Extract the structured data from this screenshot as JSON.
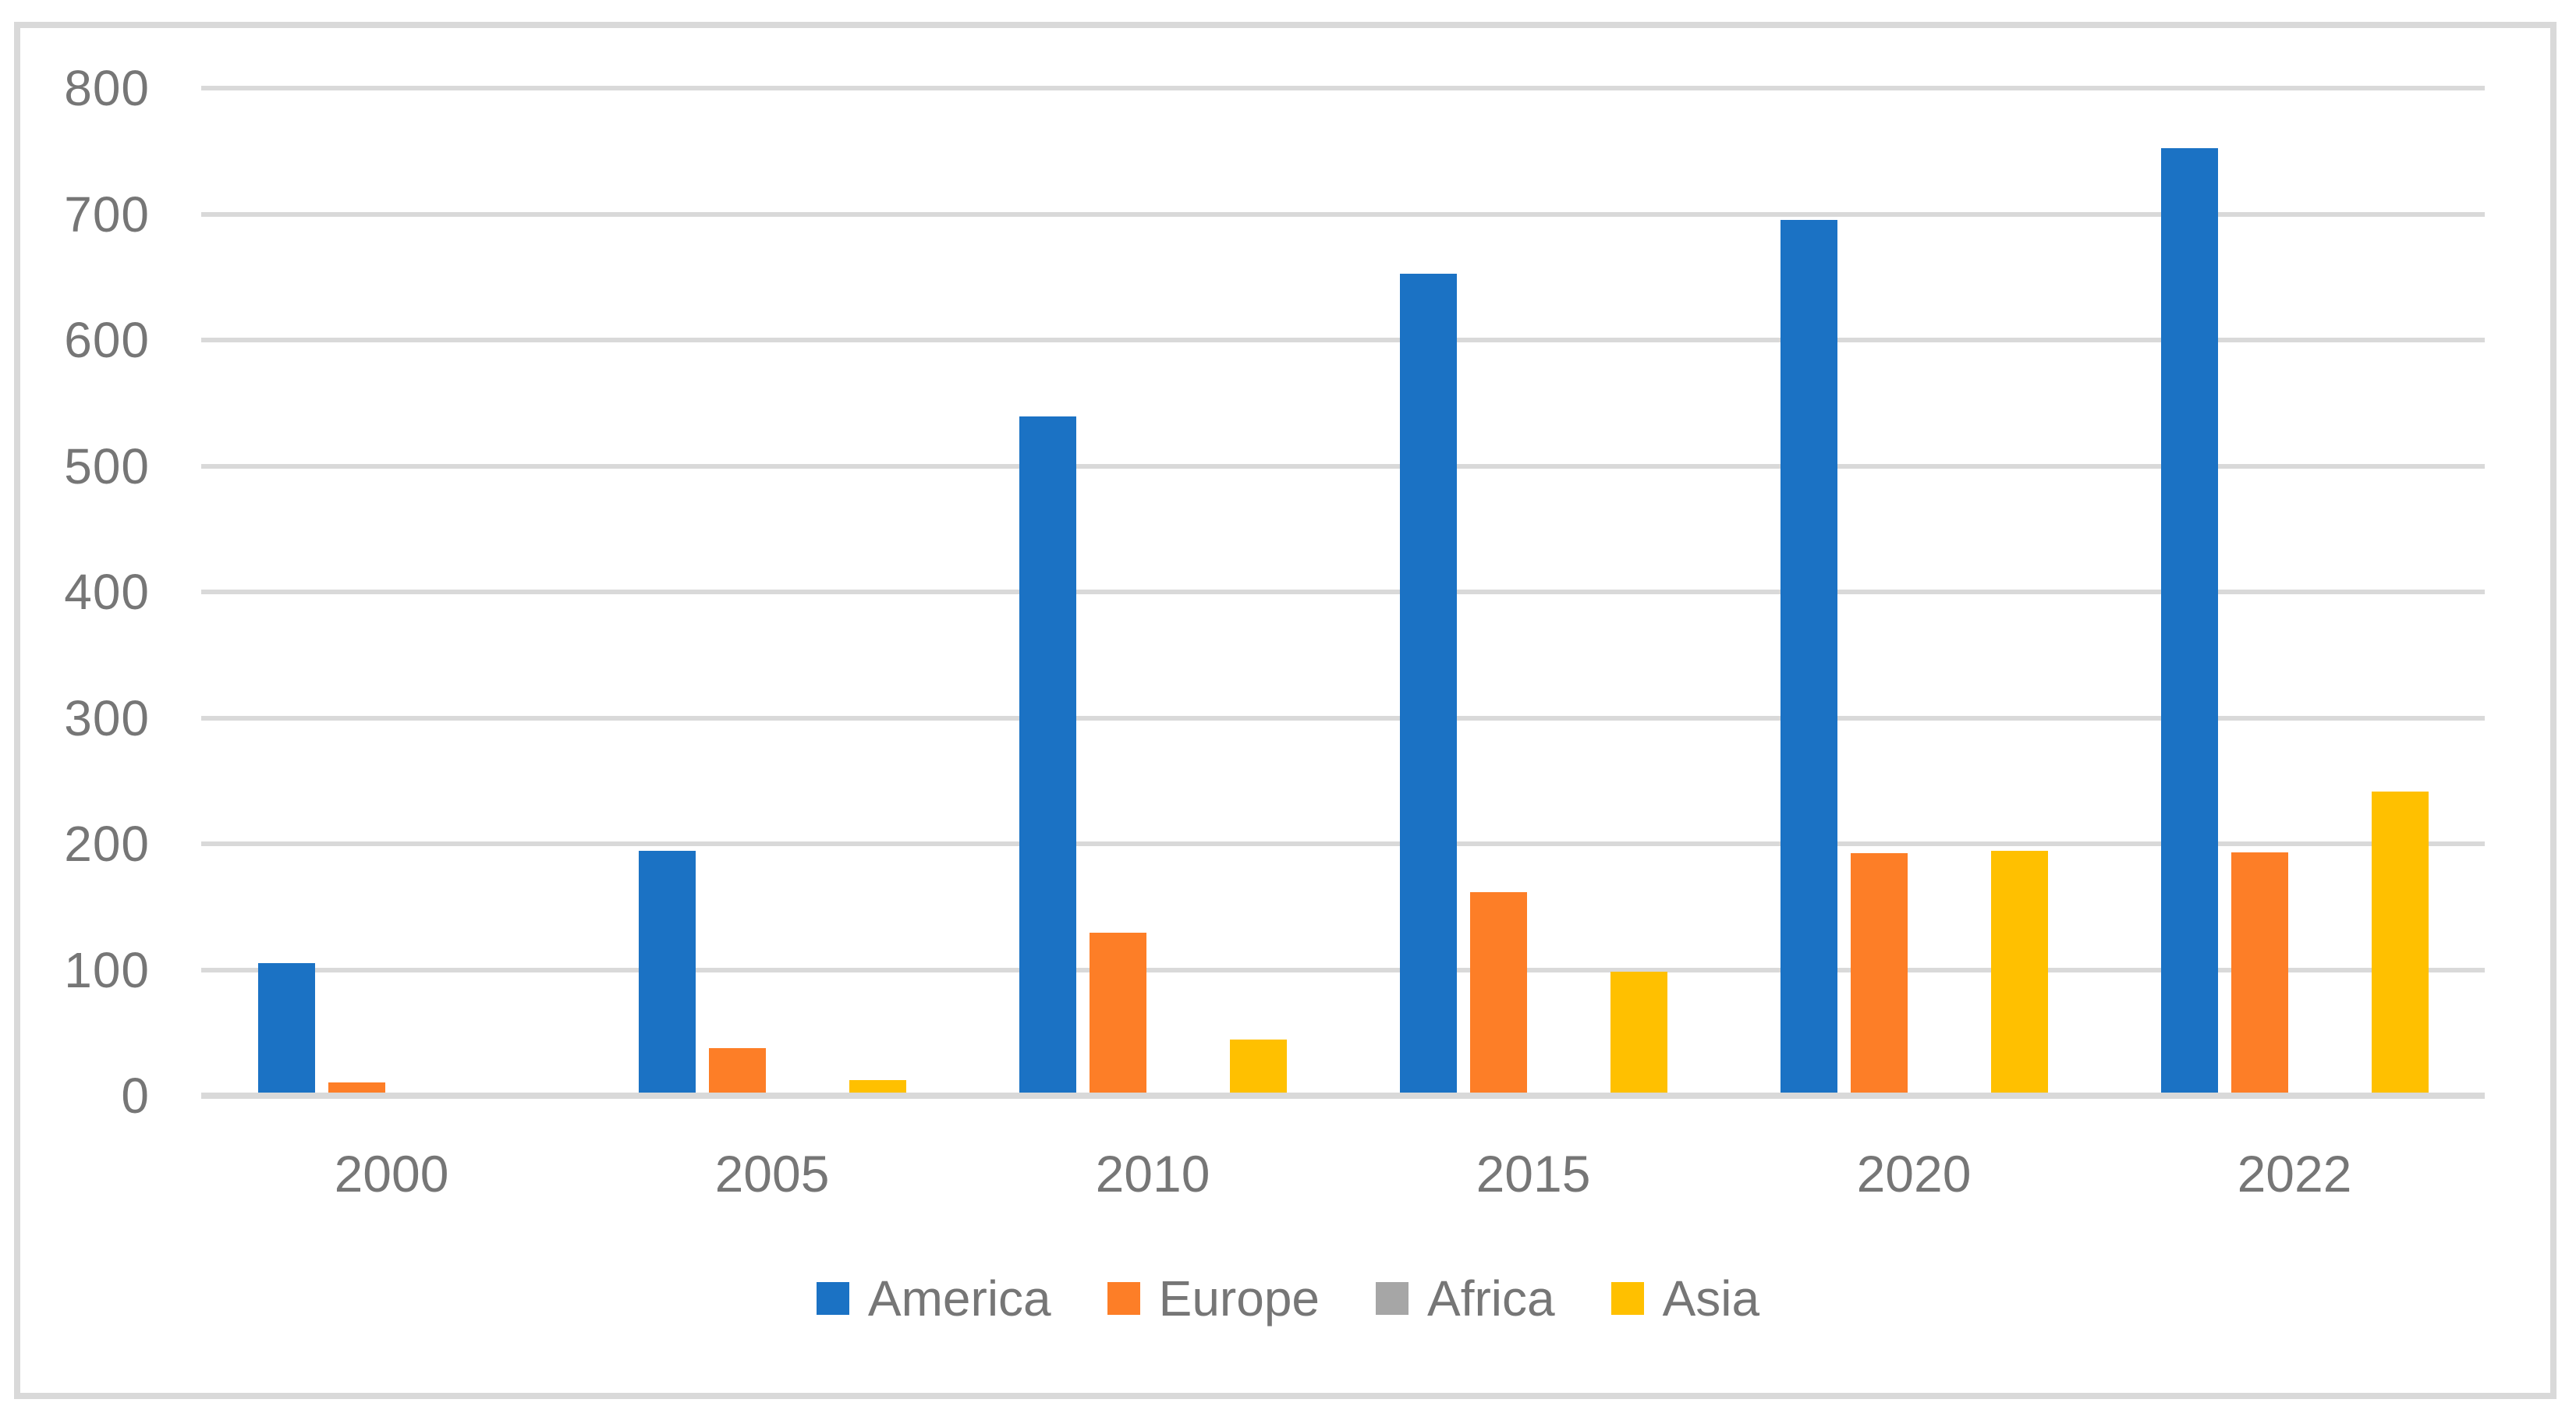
{
  "chart_data": {
    "type": "bar",
    "title": "",
    "categories": [
      "2000",
      "2005",
      "2010",
      "2015",
      "2020",
      "2022"
    ],
    "series": [
      {
        "name": "America",
        "color": "#1b72c4",
        "values": [
          103,
          192,
          537,
          650,
          693,
          750
        ]
      },
      {
        "name": "Europe",
        "color": "#fd7e27",
        "values": [
          8,
          35,
          127,
          159,
          190,
          191
        ]
      },
      {
        "name": "Africa",
        "color": "#a6a6a6",
        "values": [
          0,
          0,
          0,
          0,
          0,
          0
        ]
      },
      {
        "name": "Asia",
        "color": "#ffc000",
        "values": [
          0,
          10,
          42,
          96,
          192,
          239
        ]
      }
    ],
    "ylim": [
      0,
      800
    ],
    "y_ticks": [
      0,
      100,
      200,
      300,
      400,
      500,
      600,
      700,
      800
    ],
    "grid": true,
    "legend_position": "bottom",
    "colors": {
      "gridline": "#d9d9d9",
      "axis_line": "#d9d9d9",
      "frame_border": "#d9d9d9",
      "tick_text": "#767676",
      "background": "#ffffff"
    }
  }
}
